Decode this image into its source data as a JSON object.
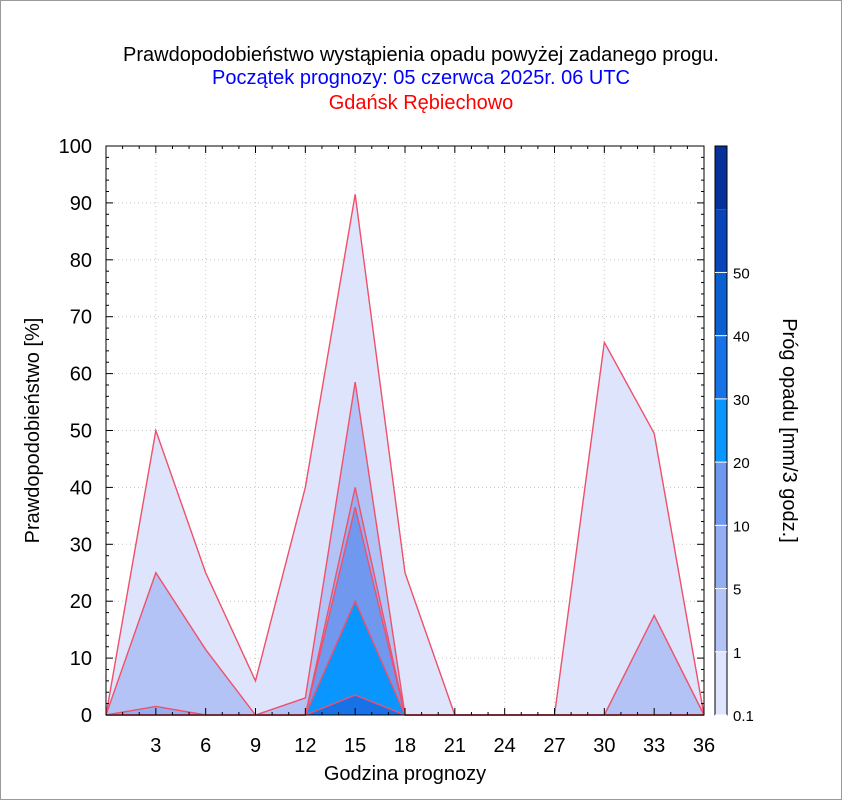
{
  "chart_data": {
    "type": "area",
    "title": "Prawdopodobieństwo wystąpienia opadu powyżej zadanego progu.",
    "subtitle": "Początek prognozy: 05 czerwca 2025r. 06 UTC",
    "location": "Gdańsk Rębiechowo",
    "xlabel": "Godzina prognozy",
    "ylabel": "Prawdopodobieństwo [%]",
    "colorbar_label": "Próg opadu [mm/3 godz.]",
    "xlim": [
      0,
      36
    ],
    "ylim": [
      0,
      100
    ],
    "x_ticks": [
      3,
      6,
      9,
      12,
      15,
      18,
      21,
      24,
      27,
      30,
      33,
      36
    ],
    "y_ticks": [
      0,
      10,
      20,
      30,
      40,
      50,
      60,
      70,
      80,
      90,
      100
    ],
    "x": [
      0,
      3,
      6,
      9,
      12,
      15,
      18,
      21,
      24,
      27,
      30,
      33,
      36
    ],
    "series": [
      {
        "threshold": "0.1",
        "color": "#dde4fb",
        "values": [
          0,
          50,
          25,
          6,
          40,
          91.5,
          25,
          0,
          0,
          0,
          65.5,
          49.5,
          0
        ]
      },
      {
        "threshold": "1",
        "color": "#b3c3f5",
        "values": [
          0,
          25,
          11.5,
          0,
          3,
          58.5,
          0,
          0,
          0,
          0,
          0,
          17.5,
          0
        ]
      },
      {
        "threshold": "5",
        "color": "#94aef2",
        "values": [
          0,
          1.5,
          0,
          0,
          0,
          40,
          0,
          0,
          0,
          0,
          0,
          0,
          0
        ]
      },
      {
        "threshold": "10",
        "color": "#6f98ee",
        "values": [
          0,
          0,
          0,
          0,
          0,
          36.5,
          0,
          0,
          0,
          0,
          0,
          0,
          0
        ]
      },
      {
        "threshold": "20",
        "color": "#0a96ff",
        "values": [
          0,
          0,
          0,
          0,
          0,
          20,
          0,
          0,
          0,
          0,
          0,
          0,
          0
        ]
      },
      {
        "threshold": "30",
        "color": "#1672e6",
        "values": [
          0,
          0,
          0,
          0,
          0,
          3.5,
          0,
          0,
          0,
          0,
          0,
          0,
          0
        ]
      }
    ],
    "line_color": "#f0506a",
    "colorbar": {
      "levels": [
        0.1,
        1,
        5,
        10,
        20,
        30,
        40,
        50
      ],
      "labels": [
        "0.1",
        "1",
        "5",
        "10",
        "20",
        "30",
        "40",
        "50"
      ],
      "colors": [
        "#dde4fb",
        "#b3c3f5",
        "#94aef2",
        "#6f98ee",
        "#0a96ff",
        "#1672e6",
        "#0c5fd0",
        "#0945b8",
        "#06309a"
      ]
    },
    "legend": "none",
    "grid": true
  }
}
